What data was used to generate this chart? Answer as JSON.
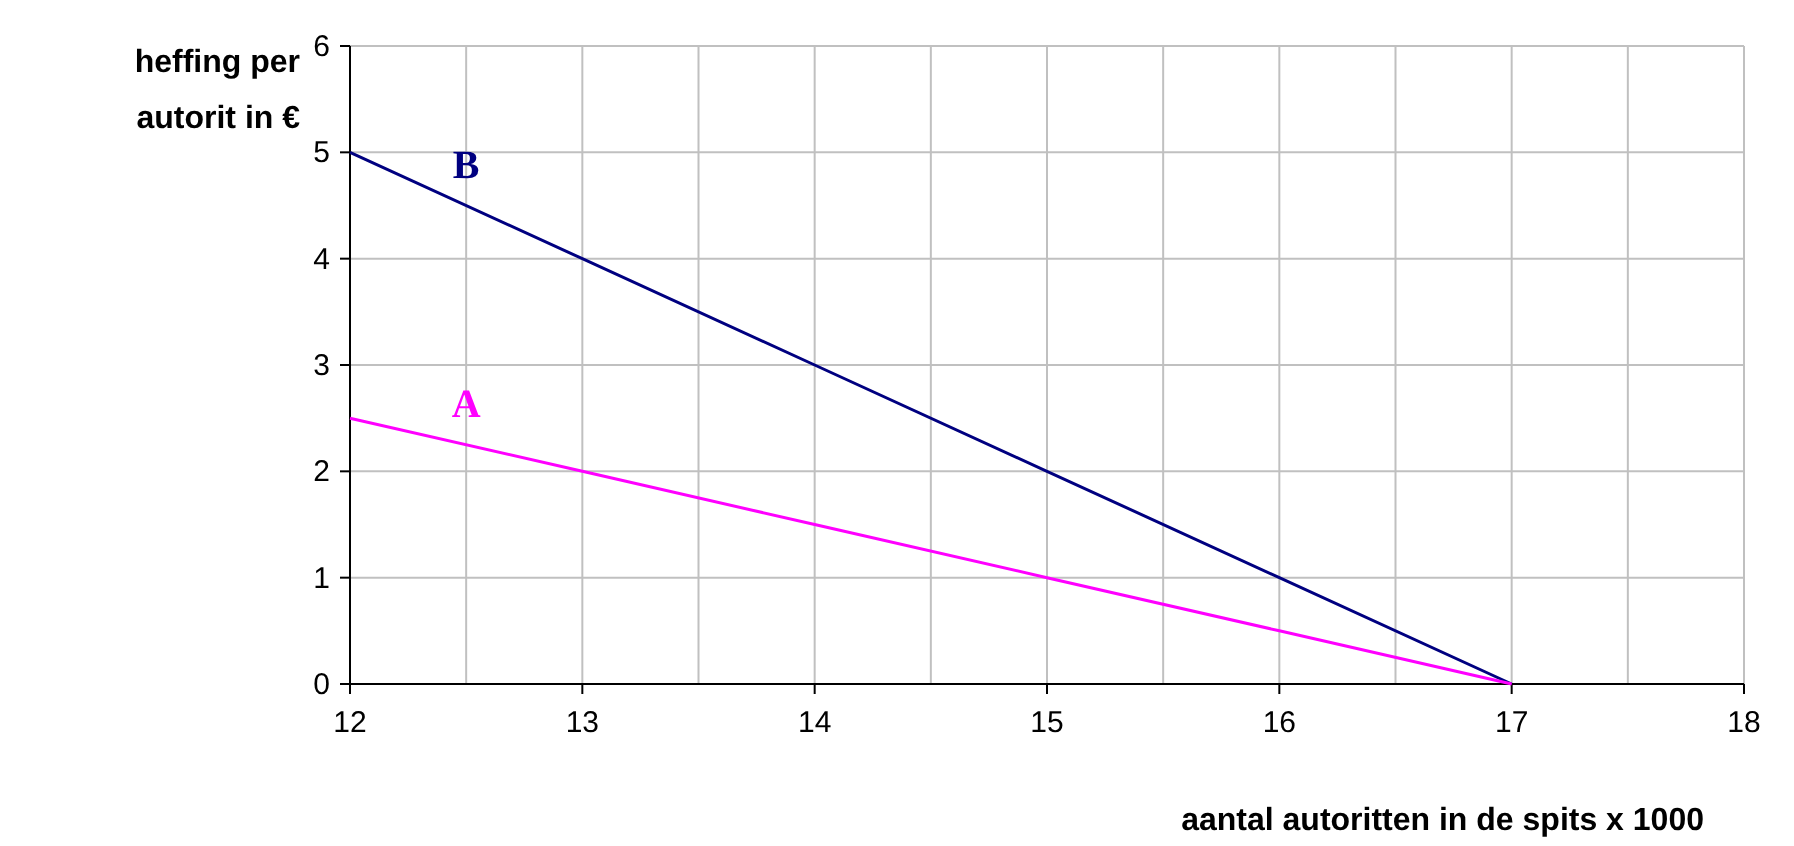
{
  "chart_data": {
    "type": "line",
    "xlabel": "aantal autoritten in de spits x 1000",
    "ylabel": "heffing per autorit in €",
    "x": [
      12,
      13,
      14,
      15,
      16,
      17
    ],
    "series": [
      {
        "name": "B",
        "color": "#000080",
        "values": [
          5,
          4,
          3,
          2,
          1,
          0
        ]
      },
      {
        "name": "A",
        "color": "#ff00ff",
        "values": [
          2.5,
          2,
          1.5,
          1,
          0.5,
          0
        ]
      }
    ],
    "xlim": [
      12,
      18
    ],
    "xticks": [
      12,
      {
        "value": 12.5,
        "label": null
      },
      13,
      {
        "value": 13.5,
        "label": null
      },
      14,
      {
        "value": 14.5,
        "label": null
      },
      15,
      {
        "value": 15.5,
        "label": null
      },
      16,
      {
        "value": 16.5,
        "label": null
      },
      17,
      {
        "value": 17.5,
        "label": null
      },
      18
    ],
    "ylim": [
      0,
      6
    ],
    "yticks": [
      0,
      1,
      2,
      3,
      4,
      5,
      6
    ],
    "grid": true,
    "marker": "none",
    "line_style": "solid"
  }
}
